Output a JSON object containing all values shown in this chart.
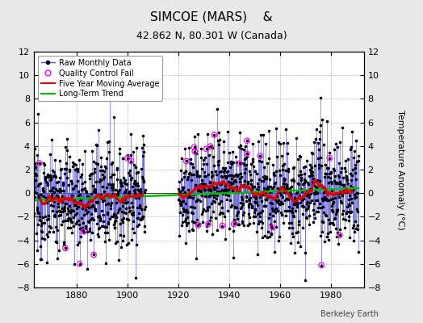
{
  "title": "SIMCOE (MARS)    &",
  "subtitle": "42.862 N, 80.301 W (Canada)",
  "ylabel": "Temperature Anomaly (°C)",
  "credit": "Berkeley Earth",
  "xlim": [
    1863,
    1993
  ],
  "ylim": [
    -8,
    12
  ],
  "yticks": [
    -8,
    -6,
    -4,
    -2,
    0,
    2,
    4,
    6,
    8,
    10,
    12
  ],
  "xticks": [
    1880,
    1900,
    1920,
    1940,
    1960,
    1980
  ],
  "bar_color": "#5555dd",
  "dot_color": "#000000",
  "ma_color": "#dd0000",
  "trend_color": "#00bb00",
  "qc_color": "#ff00ff",
  "bg_color": "#e8e8e8",
  "plot_bg": "#ffffff",
  "seed": 12345,
  "n_years": 128,
  "start_year": 1863,
  "gap_start": 1907,
  "gap_end": 1919
}
